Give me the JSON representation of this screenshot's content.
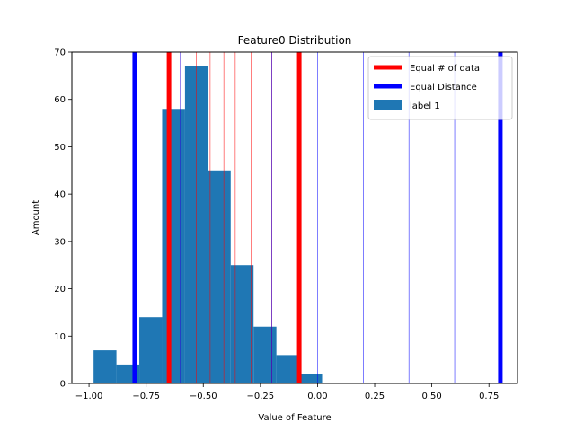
{
  "chart_data": {
    "type": "bar",
    "title": "Feature0 Distribution",
    "xlabel": "Value of Feature",
    "ylabel": "Amount",
    "xlim": [
      -1.075,
      0.875
    ],
    "ylim": [
      0,
      70
    ],
    "xticks": [
      -1.0,
      -0.75,
      -0.5,
      -0.25,
      0.0,
      0.25,
      0.5,
      0.75
    ],
    "xtick_labels": [
      "−1.00",
      "−0.75",
      "−0.50",
      "−0.25",
      "0.00",
      "0.25",
      "0.50",
      "0.75"
    ],
    "yticks": [
      0,
      10,
      20,
      30,
      40,
      50,
      60,
      70
    ],
    "ytick_labels": [
      "0",
      "10",
      "20",
      "30",
      "40",
      "50",
      "60",
      "70"
    ],
    "grid": false,
    "legend_position": "top-right",
    "histogram": {
      "name": "label 1",
      "color": "#1f77b4",
      "bin_edges": [
        -0.98,
        -0.88,
        -0.78,
        -0.68,
        -0.58,
        -0.48,
        -0.38,
        -0.28,
        -0.18,
        -0.08,
        0.02
      ],
      "counts": [
        7,
        4,
        14,
        58,
        67,
        45,
        25,
        12,
        6,
        2
      ]
    },
    "lines": [
      {
        "name": "Equal # of data",
        "color": "#ff0000",
        "thick_x": [
          -0.65,
          -0.08
        ],
        "thin_x": [
          -0.6,
          -0.53,
          -0.47,
          -0.41,
          -0.36,
          -0.29,
          -0.2
        ]
      },
      {
        "name": "Equal Distance",
        "color": "#0000ff",
        "thick_x": [
          -0.8,
          0.8
        ],
        "thin_x": [
          -0.6,
          -0.4,
          -0.2,
          0.0,
          0.2,
          0.4,
          0.6
        ]
      }
    ]
  }
}
